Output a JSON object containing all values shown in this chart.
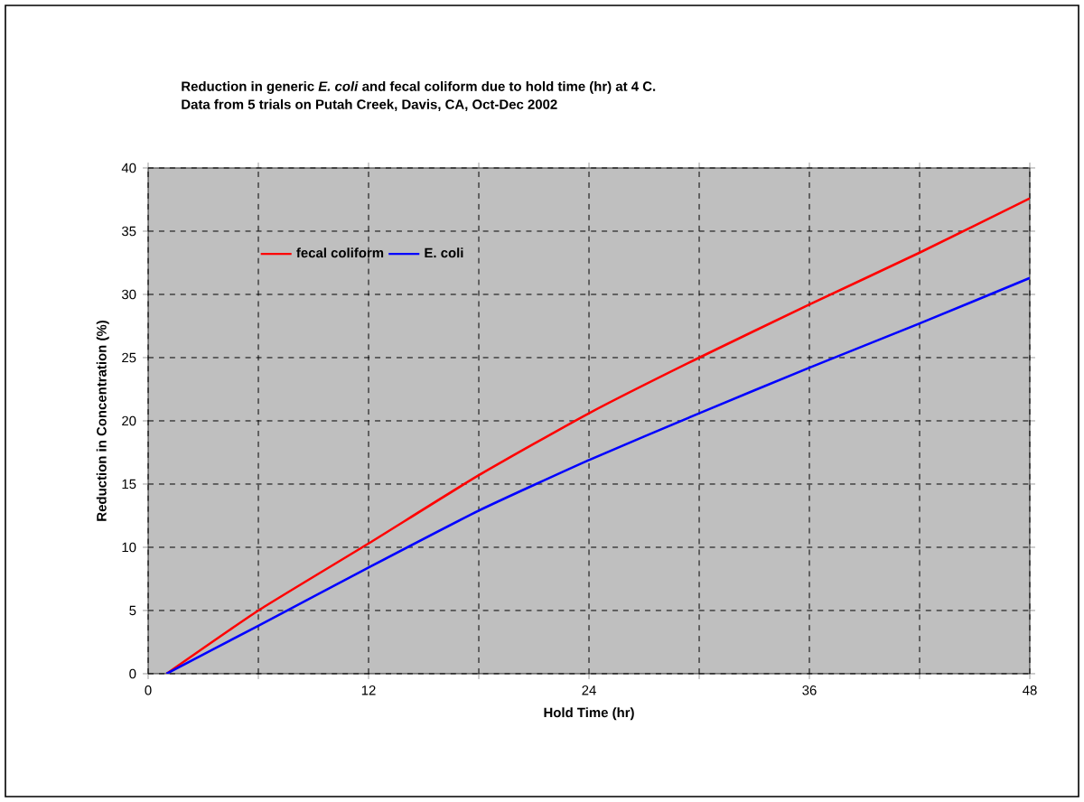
{
  "chart_data": {
    "type": "line",
    "title": "Reduction in generic *E. coli* and fecal coliform due to hold time (hr) at 4 C.",
    "subtitle": "Data from 5 trials on Putah Creek, Davis, CA, Oct-Dec 2002",
    "xlabel": "Hold Time (hr)",
    "ylabel": "Reduction in Concentration (%)",
    "x": [
      1,
      6,
      12,
      18,
      24,
      30,
      36,
      42,
      48
    ],
    "series": [
      {
        "name": "fecal coliform",
        "color": "#ff0000",
        "values": [
          0,
          5,
          10.3,
          15.7,
          20.6,
          25,
          29.2,
          33.3,
          37.6
        ]
      },
      {
        "name": "E. coli",
        "color": "#0000ff",
        "values": [
          0,
          3.8,
          8.4,
          12.9,
          16.9,
          20.6,
          24.2,
          27.7,
          31.3
        ]
      }
    ],
    "xlim": [
      0,
      48
    ],
    "ylim": [
      0,
      40
    ],
    "xticks": [
      0,
      {
        "value": 6,
        "label": null
      },
      12,
      {
        "value": 18,
        "label": null
      },
      24,
      {
        "value": 30,
        "label": null
      },
      36,
      {
        "value": 42,
        "label": null
      },
      48
    ],
    "yticks": [
      0,
      5,
      10,
      15,
      20,
      25,
      30,
      35,
      40
    ],
    "grid": true,
    "legend": "top left",
    "marker": "none",
    "line_style": "solid"
  }
}
